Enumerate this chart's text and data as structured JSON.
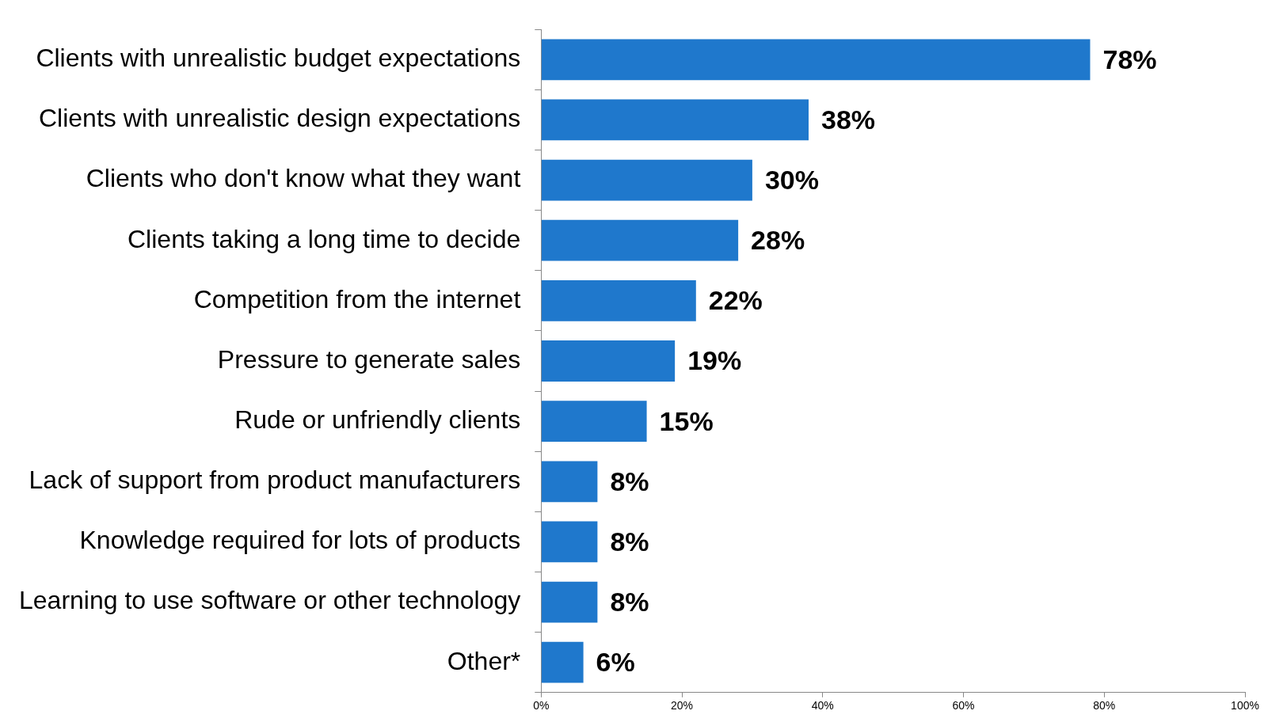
{
  "chart_data": {
    "type": "bar",
    "orientation": "horizontal",
    "categories": [
      "Clients with unrealistic budget expectations",
      "Clients with unrealistic design expectations",
      "Clients who don't know what they want",
      "Clients taking a long time to decide",
      "Competition from the internet",
      "Pressure to generate sales",
      "Rude or unfriendly clients",
      "Lack of support from product manufacturers",
      "Knowledge required for lots of products",
      "Learning to use software or other technology",
      "Other*"
    ],
    "values": [
      78,
      38,
      30,
      28,
      22,
      19,
      15,
      8,
      8,
      8,
      6
    ],
    "value_labels": [
      "78%",
      "38%",
      "30%",
      "28%",
      "22%",
      "19%",
      "15%",
      "8%",
      "8%",
      "8%",
      "6%"
    ],
    "color": "#1f78cc",
    "xlim": [
      0,
      100
    ],
    "xticks": [
      {
        "value": 0,
        "label": "0%"
      },
      {
        "value": 20,
        "label": "20%"
      },
      {
        "value": 40,
        "label": "40%"
      },
      {
        "value": 60,
        "label": "60%"
      },
      {
        "value": 80,
        "label": "80%"
      },
      {
        "value": 100,
        "label": "100%"
      }
    ],
    "grid": false,
    "legend": false
  }
}
